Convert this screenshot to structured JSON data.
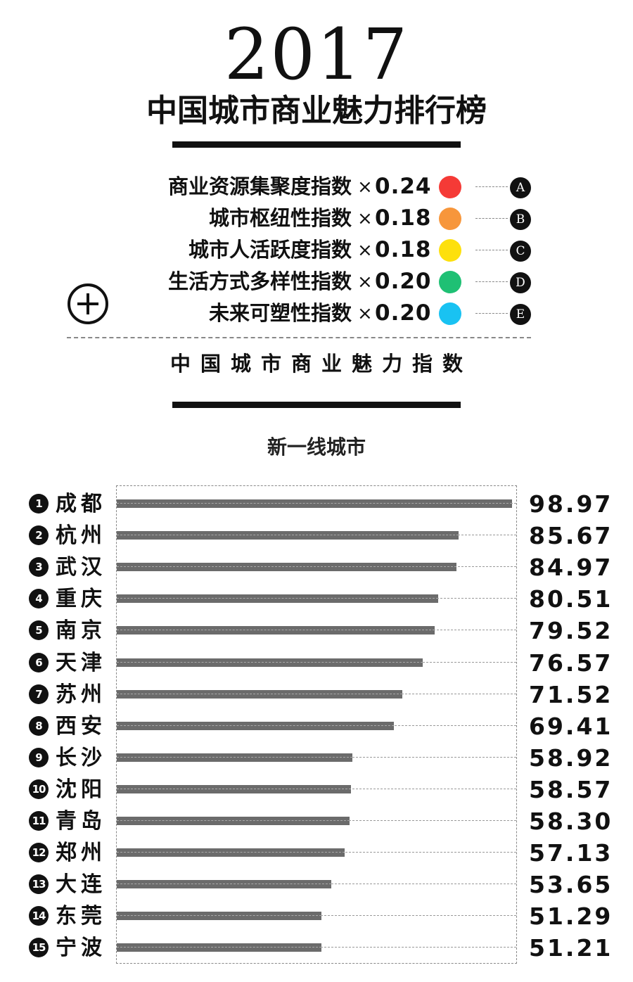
{
  "header": {
    "year": "2017",
    "title": "中国城市商业魅力排行榜"
  },
  "formula": {
    "times_symbol": "×",
    "factors": [
      {
        "name": "商业资源集聚度指数",
        "weight": "0.24",
        "color": "#f53a36",
        "letter": "A"
      },
      {
        "name": "城市枢纽性指数",
        "weight": "0.18",
        "color": "#f7963b",
        "letter": "B"
      },
      {
        "name": "城市人活跃度指数",
        "weight": "0.18",
        "color": "#fde00c",
        "letter": "C"
      },
      {
        "name": "生活方式多样性指数",
        "weight": "0.20",
        "color": "#1fc074",
        "letter": "D"
      },
      {
        "name": "未来可塑性指数",
        "weight": "0.20",
        "color": "#19c2f2",
        "letter": "E"
      }
    ],
    "result_label": "中国城市商业魅力指数"
  },
  "section_title": "新一线城市",
  "chart_data": {
    "type": "bar",
    "orientation": "horizontal",
    "title": "新一线城市",
    "categories": [
      "成都",
      "杭州",
      "武汉",
      "重庆",
      "南京",
      "天津",
      "苏州",
      "西安",
      "长沙",
      "沈阳",
      "青岛",
      "郑州",
      "大连",
      "东莞",
      "宁波"
    ],
    "ranks": [
      "1",
      "2",
      "3",
      "4",
      "5",
      "6",
      "7",
      "8",
      "9",
      "10",
      "11",
      "12",
      "13",
      "14",
      "15"
    ],
    "values": [
      98.97,
      85.67,
      84.97,
      80.51,
      79.52,
      76.57,
      71.52,
      69.41,
      58.92,
      58.57,
      58.3,
      57.13,
      53.65,
      51.29,
      51.21
    ],
    "value_labels": [
      "98.97",
      "85.67",
      "84.97",
      "80.51",
      "79.52",
      "76.57",
      "71.52",
      "69.41",
      "58.92",
      "58.57",
      "58.30",
      "57.13",
      "53.65",
      "51.29",
      "51.21"
    ],
    "bar_color": "#6b6b6b",
    "grid": false,
    "legend": "none"
  }
}
